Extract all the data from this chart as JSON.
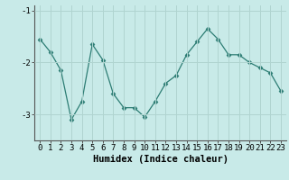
{
  "x": [
    0,
    1,
    2,
    3,
    4,
    5,
    6,
    7,
    8,
    9,
    10,
    11,
    12,
    13,
    14,
    15,
    16,
    17,
    18,
    19,
    20,
    21,
    22,
    23
  ],
  "y": [
    -1.55,
    -1.8,
    -2.15,
    -3.1,
    -2.75,
    -1.65,
    -1.95,
    -2.6,
    -2.87,
    -2.87,
    -3.05,
    -2.75,
    -2.4,
    -2.25,
    -1.85,
    -1.6,
    -1.35,
    -1.55,
    -1.85,
    -1.85,
    -2.0,
    -2.1,
    -2.2,
    -2.55
  ],
  "xlabel": "Humidex (Indice chaleur)",
  "ylabel": "",
  "ylim": [
    -3.5,
    -0.9
  ],
  "xlim": [
    -0.5,
    23.5
  ],
  "yticks": [
    -3,
    -2,
    -1
  ],
  "xticks": [
    0,
    1,
    2,
    3,
    4,
    5,
    6,
    7,
    8,
    9,
    10,
    11,
    12,
    13,
    14,
    15,
    16,
    17,
    18,
    19,
    20,
    21,
    22,
    23
  ],
  "line_color": "#2d7d74",
  "marker": "D",
  "marker_size": 2.5,
  "bg_color": "#c8eae8",
  "grid_color": "#b0d4d0",
  "axis_fontsize": 7.5,
  "tick_fontsize": 6.5
}
